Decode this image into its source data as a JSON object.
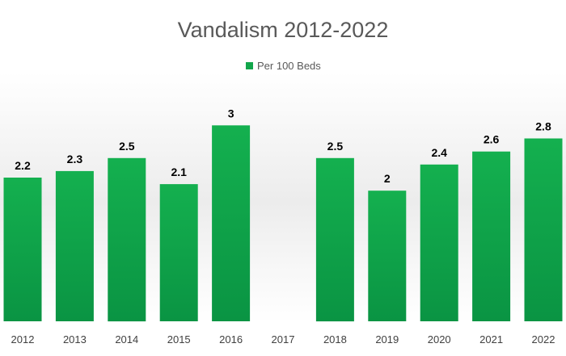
{
  "chart_data": {
    "type": "bar",
    "title": "Vandalism 2012-2022",
    "categories": [
      "2012",
      "2013",
      "2014",
      "2015",
      "2016",
      "2017",
      "2018",
      "2019",
      "2020",
      "2021",
      "2022"
    ],
    "series": [
      {
        "name": "Per 100 Beds",
        "color": "#12a64b",
        "values": [
          2.2,
          2.3,
          2.5,
          2.1,
          3,
          null,
          2.5,
          2,
          2.4,
          2.6,
          2.8
        ]
      }
    ],
    "data_labels": [
      "2.2",
      "2.3",
      "2.5",
      "2.1",
      "3",
      "",
      "2.5",
      "2",
      "2.4",
      "2.6",
      "2.8"
    ],
    "legend_position": "top",
    "grid": false,
    "ylim": [
      0,
      3
    ]
  }
}
